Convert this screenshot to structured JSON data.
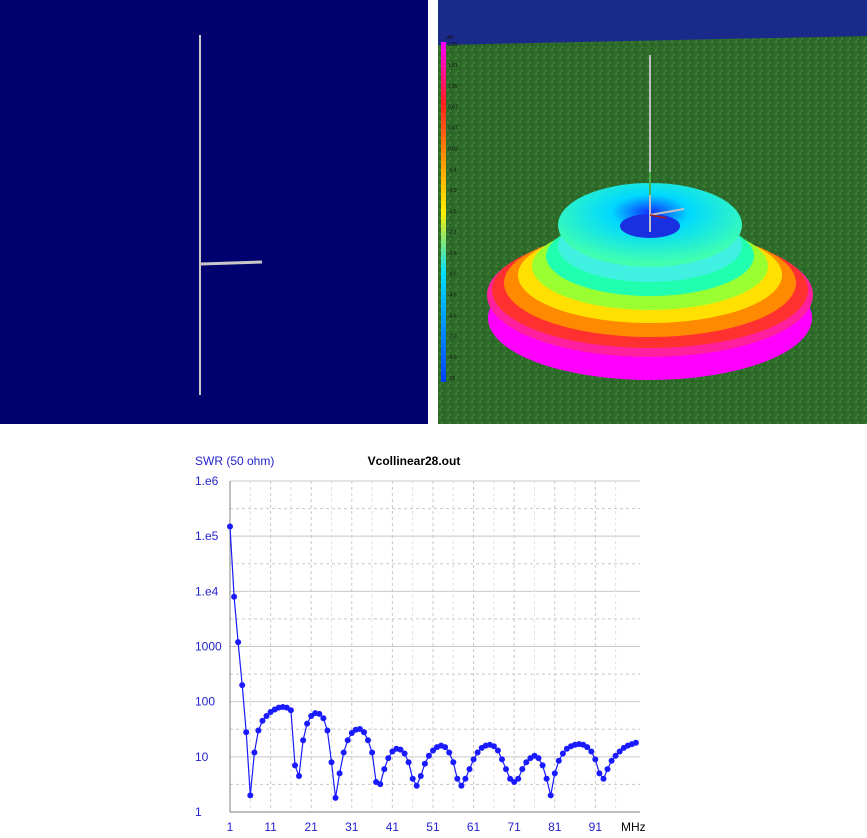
{
  "wire_view": {
    "colors": {
      "background": "#00006e",
      "wire": "#c8c8c8"
    }
  },
  "pattern_view": {
    "scale_unit": "dBi",
    "scale_labels": [
      "1.95",
      "1.61",
      "1.25",
      "0.87",
      "0.47",
      "0.03",
      "-0.4",
      "-0.9",
      "-1.5",
      "-2.1",
      "-2.8",
      "-3.6",
      "-4.5",
      "-5.6",
      "-7.3",
      "-9.9",
      "-25"
    ],
    "colors": {
      "ground": "#2e6b2a",
      "scale": [
        "#ff00ff",
        "#ff2020",
        "#ff9900",
        "#ffee00",
        "#00e0ff",
        "#0040ff"
      ]
    }
  },
  "chart_data": {
    "type": "line",
    "title": "Vcollinear28.out",
    "ylabel": "SWR (50 ohm)",
    "xlabel": "MHz",
    "x_tick_labels": [
      "1",
      "11",
      "21",
      "31",
      "41",
      "51",
      "61",
      "71",
      "81",
      "91"
    ],
    "y_tick_labels": [
      "1",
      "10",
      "100",
      "1000",
      "1.e4",
      "1.e5",
      "1.e6"
    ],
    "xlim": [
      1,
      102
    ],
    "ylim": [
      1,
      1000000
    ],
    "y_scale": "log",
    "grid": true,
    "series_color": "#1a1aff",
    "series": [
      {
        "x": [
          1,
          2,
          3,
          4,
          5,
          6,
          7,
          8,
          9,
          10,
          11,
          12,
          13,
          14,
          15,
          16,
          17,
          18,
          19,
          20,
          21,
          22,
          23,
          24,
          25,
          26,
          27,
          28,
          29,
          30,
          31,
          32,
          33,
          34,
          35,
          36,
          37,
          38,
          39,
          40,
          41,
          42,
          43,
          44,
          45,
          46,
          47,
          48,
          49,
          50,
          51,
          52,
          53,
          54,
          55,
          56,
          57,
          58,
          59,
          60,
          61,
          62,
          63,
          64,
          65,
          66,
          67,
          68,
          69,
          70,
          71,
          72,
          73,
          74,
          75,
          76,
          77,
          78,
          79,
          80,
          81,
          82,
          83,
          84,
          85,
          86,
          87,
          88,
          89,
          90,
          91,
          92,
          93,
          94,
          95,
          96,
          97,
          98,
          99,
          100,
          101
        ],
        "y": [
          150000,
          8000,
          1200,
          200,
          28,
          2,
          12,
          30,
          45,
          55,
          65,
          72,
          78,
          80,
          78,
          70,
          7,
          4.5,
          20,
          40,
          55,
          62,
          60,
          50,
          30,
          8,
          1.8,
          5,
          12,
          20,
          27,
          31,
          32,
          28,
          20,
          12,
          3.5,
          3.2,
          6,
          9.5,
          12.5,
          14,
          13.5,
          11.5,
          8,
          4,
          3,
          4.5,
          7.5,
          10.5,
          13,
          15,
          16,
          15,
          12,
          8,
          4,
          3,
          4,
          6,
          9,
          12,
          14.5,
          16,
          16.5,
          15.5,
          13,
          9,
          6,
          4,
          3.5,
          4,
          6,
          8,
          9.5,
          10.5,
          9.5,
          7,
          4,
          2,
          5,
          8.5,
          11.5,
          14,
          15.5,
          16.5,
          17,
          16.5,
          15,
          12.5,
          9,
          5,
          4,
          6,
          8.5,
          10.5,
          12.5,
          14.5,
          16,
          17,
          18
        ]
      }
    ]
  }
}
